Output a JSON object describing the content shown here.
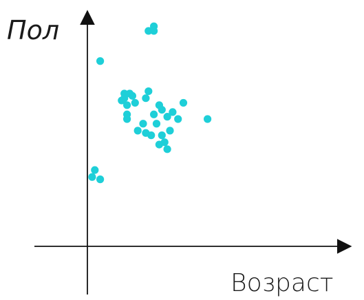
{
  "chart_data": {
    "type": "scatter",
    "title": "",
    "xlabel": "Возраст",
    "ylabel": "Пол",
    "show_tick_labels": false,
    "grid": false,
    "legend": "none",
    "point_color": "#1ecfd8",
    "axis_color": "#111111",
    "xlim": [
      0,
      100
    ],
    "ylim": [
      0,
      100
    ],
    "points": [
      {
        "x": 22,
        "y": 92
      },
      {
        "x": 24,
        "y": 92
      },
      {
        "x": 24,
        "y": 94
      },
      {
        "x": 4,
        "y": 79
      },
      {
        "x": 1,
        "y": 29
      },
      {
        "x": 2,
        "y": 32
      },
      {
        "x": 4,
        "y": 28
      },
      {
        "x": 12,
        "y": 62
      },
      {
        "x": 13,
        "y": 65
      },
      {
        "x": 13,
        "y": 63
      },
      {
        "x": 14,
        "y": 60
      },
      {
        "x": 15,
        "y": 65
      },
      {
        "x": 16,
        "y": 64
      },
      {
        "x": 17,
        "y": 61
      },
      {
        "x": 14,
        "y": 56
      },
      {
        "x": 14,
        "y": 54
      },
      {
        "x": 22,
        "y": 66
      },
      {
        "x": 21,
        "y": 63
      },
      {
        "x": 26,
        "y": 60
      },
      {
        "x": 27,
        "y": 58
      },
      {
        "x": 29,
        "y": 55
      },
      {
        "x": 33,
        "y": 54
      },
      {
        "x": 35,
        "y": 61
      },
      {
        "x": 31,
        "y": 57
      },
      {
        "x": 25,
        "y": 52
      },
      {
        "x": 24,
        "y": 56
      },
      {
        "x": 18,
        "y": 49
      },
      {
        "x": 20,
        "y": 52
      },
      {
        "x": 21,
        "y": 48
      },
      {
        "x": 23,
        "y": 47
      },
      {
        "x": 27,
        "y": 47
      },
      {
        "x": 28,
        "y": 44
      },
      {
        "x": 26,
        "y": 43
      },
      {
        "x": 29,
        "y": 41
      },
      {
        "x": 30,
        "y": 49
      },
      {
        "x": 44,
        "y": 54
      }
    ]
  }
}
